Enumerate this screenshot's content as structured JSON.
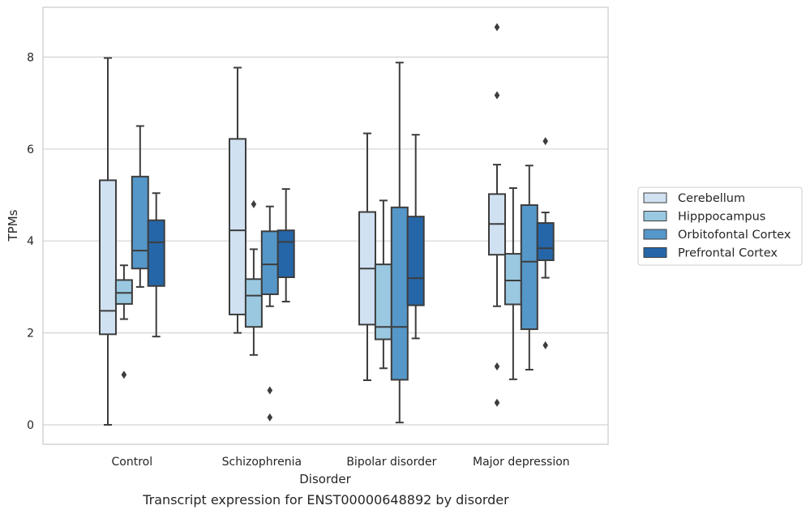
{
  "chart_data": {
    "type": "boxplot",
    "caption": "Transcript expression for ENST00000648892 by disorder",
    "xlabel": "Disorder",
    "ylabel": "TPMs",
    "ylim": [
      -0.4,
      9.1
    ],
    "yticks": [
      0,
      2,
      4,
      6,
      8
    ],
    "grid": "horizontal",
    "legend_position": "right",
    "categories": [
      "Control",
      "Schizophrenia",
      "Bipolar disorder",
      "Major depression"
    ],
    "series": [
      {
        "name": "Cerebellum",
        "color": "#d0e1f2",
        "boxes": [
          {
            "whislo": 0.0,
            "q1": 1.97,
            "med": 2.48,
            "q3": 5.32,
            "whishi": 7.98,
            "fliers": []
          },
          {
            "whislo": 2.0,
            "q1": 2.4,
            "med": 4.23,
            "q3": 6.22,
            "whishi": 7.77,
            "fliers": []
          },
          {
            "whislo": 0.97,
            "q1": 2.18,
            "med": 3.4,
            "q3": 4.63,
            "whishi": 6.34,
            "fliers": []
          },
          {
            "whislo": 2.58,
            "q1": 3.7,
            "med": 4.37,
            "q3": 5.02,
            "whishi": 5.66,
            "fliers": [
              0.48,
              1.27,
              7.17,
              8.65
            ]
          }
        ]
      },
      {
        "name": "Hipppocampus",
        "color": "#9ac8e0",
        "boxes": [
          {
            "whislo": 2.3,
            "q1": 2.63,
            "med": 2.87,
            "q3": 3.15,
            "whishi": 3.47,
            "fliers": [
              1.09
            ]
          },
          {
            "whislo": 1.52,
            "q1": 2.13,
            "med": 2.81,
            "q3": 3.17,
            "whishi": 3.82,
            "fliers": [
              4.8
            ]
          },
          {
            "whislo": 1.23,
            "q1": 1.86,
            "med": 2.13,
            "q3": 3.49,
            "whishi": 4.88,
            "fliers": []
          },
          {
            "whislo": 0.99,
            "q1": 2.62,
            "med": 3.14,
            "q3": 3.72,
            "whishi": 5.15,
            "fliers": []
          }
        ]
      },
      {
        "name": "Orbitofontal Cortex",
        "color": "#5597c8",
        "boxes": [
          {
            "whislo": 3.0,
            "q1": 3.4,
            "med": 3.79,
            "q3": 5.4,
            "whishi": 6.5,
            "fliers": []
          },
          {
            "whislo": 2.58,
            "q1": 2.84,
            "med": 3.49,
            "q3": 4.21,
            "whishi": 4.75,
            "fliers": [
              0.16,
              0.75
            ]
          },
          {
            "whislo": 0.05,
            "q1": 0.98,
            "med": 2.13,
            "q3": 4.73,
            "whishi": 7.88,
            "fliers": []
          },
          {
            "whislo": 1.2,
            "q1": 2.08,
            "med": 3.55,
            "q3": 4.78,
            "whishi": 5.64,
            "fliers": []
          }
        ]
      },
      {
        "name": "Prefrontal Cortex",
        "color": "#2566a9",
        "boxes": [
          {
            "whislo": 1.92,
            "q1": 3.02,
            "med": 3.97,
            "q3": 4.45,
            "whishi": 5.04,
            "fliers": []
          },
          {
            "whislo": 2.68,
            "q1": 3.21,
            "med": 3.98,
            "q3": 4.23,
            "whishi": 5.13,
            "fliers": []
          },
          {
            "whislo": 1.88,
            "q1": 2.6,
            "med": 3.19,
            "q3": 4.53,
            "whishi": 6.31,
            "fliers": []
          },
          {
            "whislo": 3.2,
            "q1": 3.58,
            "med": 3.84,
            "q3": 4.39,
            "whishi": 4.62,
            "fliers": [
              1.73,
              6.17
            ]
          }
        ]
      }
    ]
  }
}
